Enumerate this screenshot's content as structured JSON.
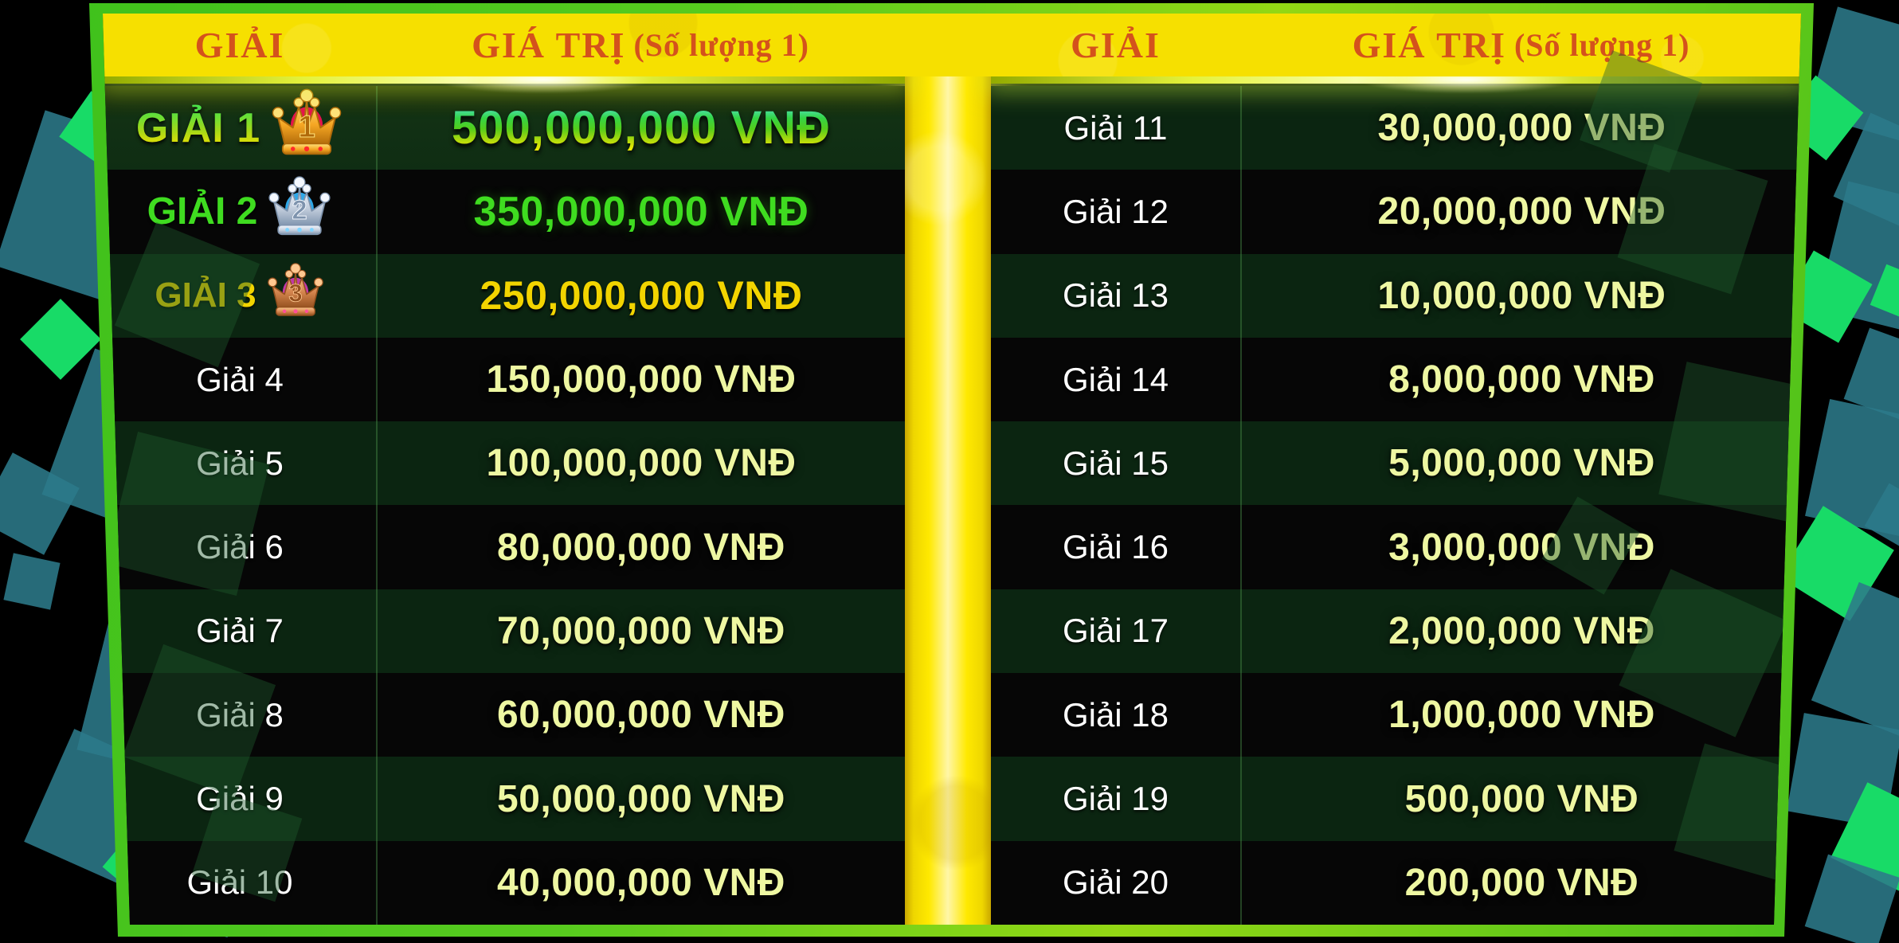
{
  "header": {
    "prize_col": "GIẢI",
    "value_col": "GIÁ TRỊ",
    "value_col_note": "(Số lượng 1)"
  },
  "tables": {
    "left": [
      {
        "label": "GIẢI 1",
        "value": "500,000,000 VNĐ",
        "tier": "gold",
        "crown_icon": "crown-gold-icon",
        "crown_number": "1"
      },
      {
        "label": "GIẢI 2",
        "value": "350,000,000 VNĐ",
        "tier": "silver",
        "crown_icon": "crown-silver-icon",
        "crown_number": "2"
      },
      {
        "label": "GIẢI 3",
        "value": "250,000,000 VNĐ",
        "tier": "bronze",
        "crown_icon": "crown-bronze-icon",
        "crown_number": "3"
      },
      {
        "label": "Giải 4",
        "value": "150,000,000 VNĐ",
        "tier": "normal"
      },
      {
        "label": "Giải 5",
        "value": "100,000,000 VNĐ",
        "tier": "normal"
      },
      {
        "label": "Giải 6",
        "value": "80,000,000 VNĐ",
        "tier": "normal"
      },
      {
        "label": "Giải 7",
        "value": "70,000,000 VNĐ",
        "tier": "normal"
      },
      {
        "label": "Giải 8",
        "value": "60,000,000 VNĐ",
        "tier": "normal"
      },
      {
        "label": "Giải 9",
        "value": "50,000,000 VNĐ",
        "tier": "normal"
      },
      {
        "label": "Giải 10",
        "value": "40,000,000 VNĐ",
        "tier": "normal"
      }
    ],
    "right": [
      {
        "label": "Giải 11",
        "value": "30,000,000 VNĐ",
        "tier": "normal"
      },
      {
        "label": "Giải 12",
        "value": "20,000,000 VNĐ",
        "tier": "normal"
      },
      {
        "label": "Giải 13",
        "value": "10,000,000 VNĐ",
        "tier": "normal"
      },
      {
        "label": "Giải 14",
        "value": "8,000,000 VNĐ",
        "tier": "normal"
      },
      {
        "label": "Giải 15",
        "value": "5,000,000 VNĐ",
        "tier": "normal"
      },
      {
        "label": "Giải 16",
        "value": "3,000,000 VNĐ",
        "tier": "normal"
      },
      {
        "label": "Giải 17",
        "value": "2,000,000 VNĐ",
        "tier": "normal"
      },
      {
        "label": "Giải 18",
        "value": "1,000,000 VNĐ",
        "tier": "normal"
      },
      {
        "label": "Giải 19",
        "value": "500,000 VNĐ",
        "tier": "normal"
      },
      {
        "label": "Giải 20",
        "value": "200,000 VNĐ",
        "tier": "normal"
      }
    ]
  },
  "colors": {
    "header_text": "#d4521c",
    "band_yellow": "#f6e000",
    "border_green": "#46c41f",
    "divider_yellow": "#f8e600",
    "row_green": "#0b2511",
    "row_black": "#060606",
    "value_text": "#eef7a2",
    "label_text": "#ffffff",
    "tier1_green": "#3bd84a",
    "tier2_green": "#3fdc20",
    "tier3_gold": "#f2d400"
  }
}
